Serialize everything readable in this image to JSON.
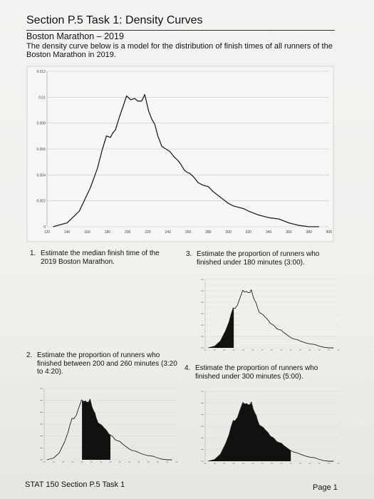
{
  "document": {
    "title": "Section P.5 Task 1: Density Curves",
    "subtitle": "Boston Marathon – 2019",
    "intro": "The density curve below is a model for the distribution of finish times of all runners of the Boston Marathon in 2019."
  },
  "questions": [
    {
      "number": "1.",
      "text": "Estimate the median finish time of the 2019 Boston Marathon."
    },
    {
      "number": "2.",
      "text": "Estimate the proportion of runners who finished between 200 and 260 minutes (3:20 to 4:20)."
    },
    {
      "number": "3.",
      "text": "Estimate the proportion of runners who finished under 180 minutes (3:00)."
    },
    {
      "number": "4.",
      "text": "Estimate the proportion of runners who finished under 300 minutes (5:00)."
    }
  ],
  "footer": {
    "left": "STAT 150 Section P.5 Task 1",
    "right": "Page 1"
  },
  "chart_data": {
    "type": "line",
    "title": "",
    "xlabel": "",
    "ylabel": "",
    "xlim": [
      120,
      400
    ],
    "ylim": [
      0,
      0.012
    ],
    "x_ticks": [
      120,
      140,
      160,
      180,
      200,
      220,
      240,
      260,
      280,
      300,
      320,
      340,
      360,
      380,
      400
    ],
    "y_ticks": [
      "0",
      "0.002",
      "0.004",
      "0.006",
      "0.008",
      "0.01",
      "0.012"
    ],
    "grid": "horizontal",
    "series": [
      {
        "x": [
          126,
          140,
          152,
          163,
          170,
          175,
          179,
          183,
          185,
          188,
          192,
          196,
          199,
          203,
          207,
          210,
          214,
          217,
          221,
          224,
          227,
          230,
          234,
          238,
          242,
          246,
          250,
          253,
          256,
          259,
          262,
          266,
          270,
          275,
          280,
          285,
          290,
          295,
          300,
          305,
          310,
          315,
          320,
          330,
          340,
          350,
          360,
          370,
          380,
          390
        ],
        "y": [
          0,
          0.0003,
          0.0012,
          0.003,
          0.0045,
          0.006,
          0.007,
          0.0069,
          0.0072,
          0.0075,
          0.0085,
          0.0094,
          0.0101,
          0.0098,
          0.0099,
          0.0097,
          0.0097,
          0.0102,
          0.0089,
          0.0083,
          0.0079,
          0.007,
          0.0062,
          0.006,
          0.0058,
          0.0054,
          0.0051,
          0.0048,
          0.0044,
          0.0042,
          0.0041,
          0.0038,
          0.0034,
          0.0032,
          0.0031,
          0.0027,
          0.0024,
          0.0021,
          0.0018,
          0.0016,
          0.0015,
          0.0014,
          0.0012,
          0.0009,
          0.0007,
          0.0006,
          0.0003,
          0.0001,
          0.0,
          0.0
        ]
      }
    ]
  },
  "mini_charts": [
    {
      "question": "2",
      "shade_from": 200,
      "shade_to": 260
    },
    {
      "question": "3",
      "shade_from": 120,
      "shade_to": 180
    },
    {
      "question": "4",
      "shade_from": 120,
      "shade_to": 300
    }
  ]
}
